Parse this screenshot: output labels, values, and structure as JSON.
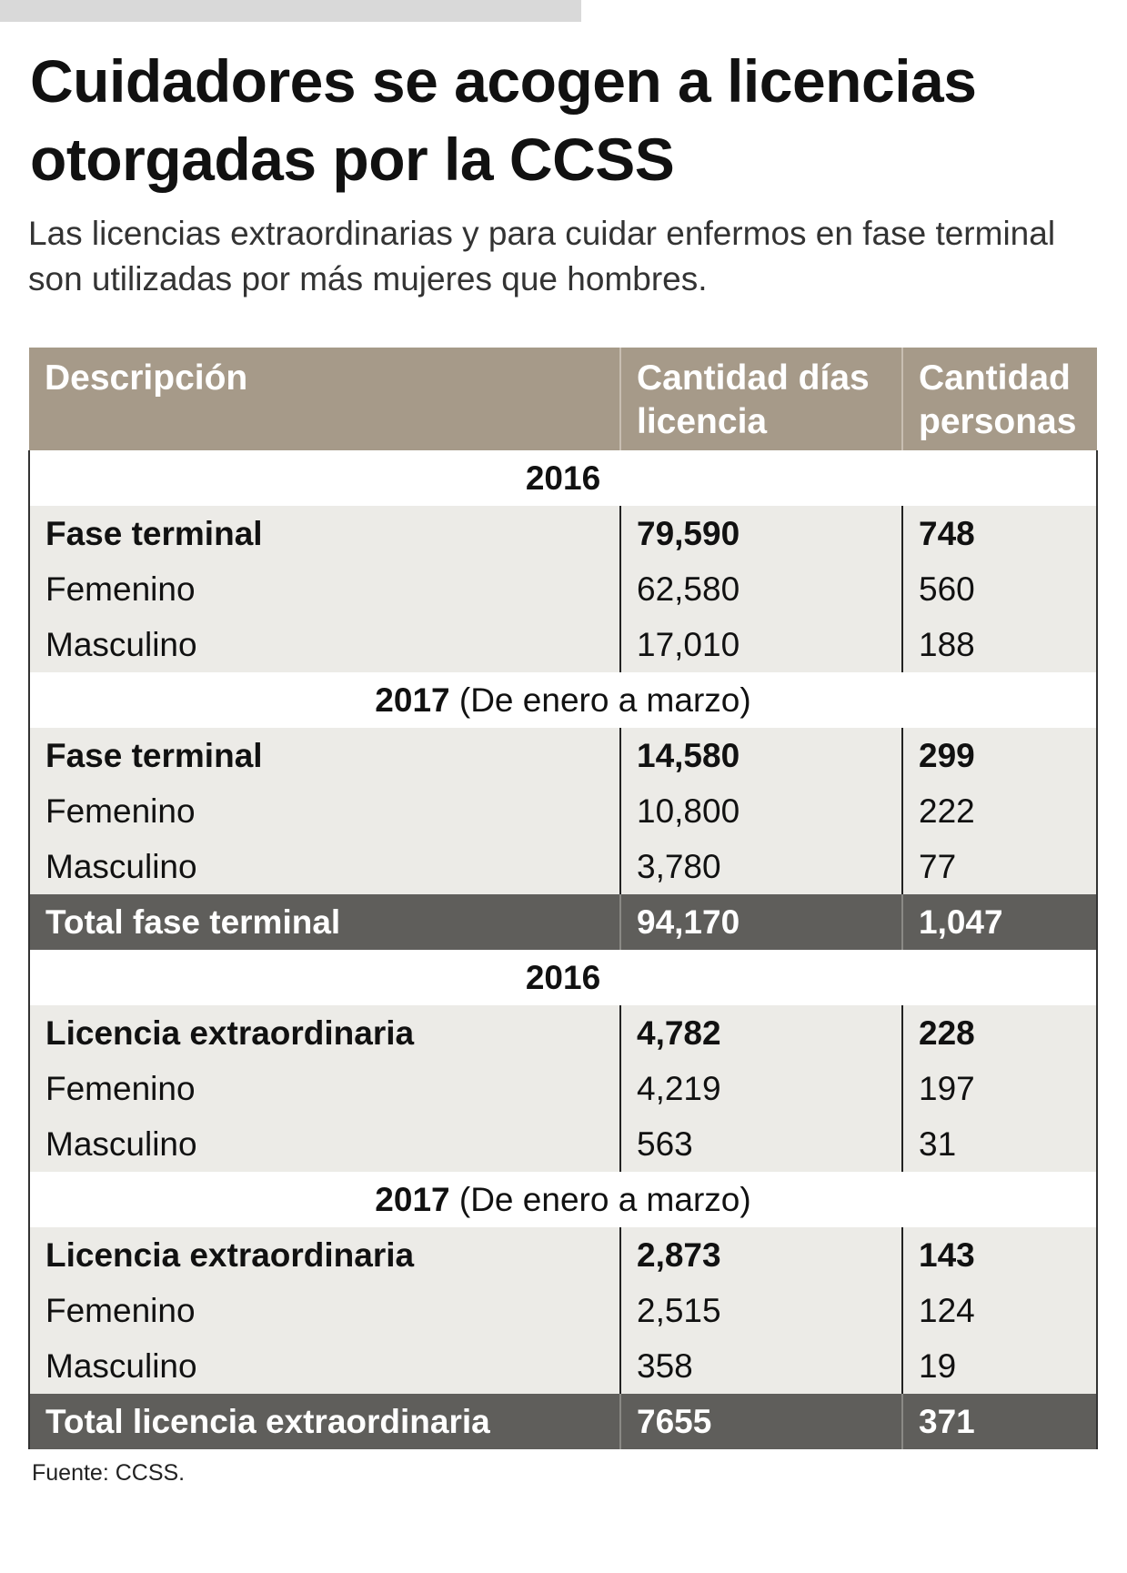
{
  "title": "Cuidadores se acogen a licencias otorgadas por la CCSS",
  "subtitle": "Las licencias extraordinarias y para cuidar enfermos en fase terminal son utilizadas por más mujeres que hombres.",
  "headers": [
    "Descripción",
    "Cantidad días licencia",
    "Cantidad personas"
  ],
  "sections": [
    {
      "year": "2016",
      "note": "",
      "rows": [
        [
          "Fase terminal",
          "79,590",
          "748"
        ],
        [
          "Femenino",
          "62,580",
          "560"
        ],
        [
          "Masculino",
          "17,010",
          "188"
        ]
      ]
    },
    {
      "year": "2017",
      "note": "(De enero a marzo)",
      "rows": [
        [
          "Fase terminal",
          "14,580",
          "299"
        ],
        [
          "Femenino",
          "10,800",
          "222"
        ],
        [
          "Masculino",
          "3,780",
          "77"
        ]
      ]
    },
    {
      "total": [
        "Total fase terminal",
        "94,170",
        "1,047"
      ]
    },
    {
      "year": "2016",
      "note": "",
      "rows": [
        [
          "Licencia extraordinaria",
          "4,782",
          "228"
        ],
        [
          "Femenino",
          "4,219",
          "197"
        ],
        [
          "Masculino",
          "563",
          "31"
        ]
      ]
    },
    {
      "year": "2017",
      "note": "(De enero a marzo)",
      "rows": [
        [
          "Licencia extraordinaria",
          "2,873",
          "143"
        ],
        [
          "Femenino",
          "2,515",
          "124"
        ],
        [
          "Masculino",
          "358",
          "19"
        ]
      ]
    },
    {
      "total": [
        "Total licencia extraordinaria",
        "7655",
        "371"
      ]
    }
  ],
  "source": "Fuente: CCSS.",
  "colors": {
    "header": "#a69a89",
    "row": "#ecebe7",
    "total": "#5f5e5b"
  }
}
